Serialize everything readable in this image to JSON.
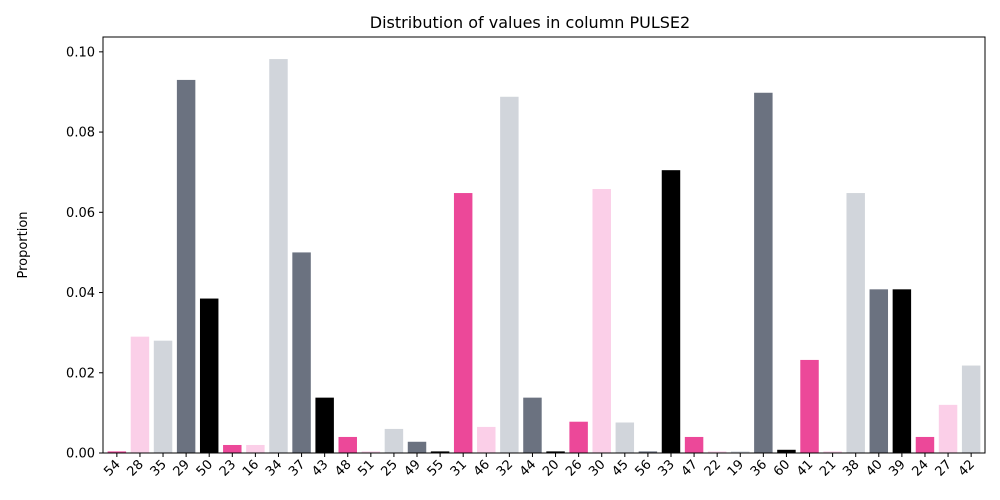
{
  "chart_data": {
    "type": "bar",
    "title": "Distribution of values in column PULSE2",
    "xlabel": "",
    "ylabel": "Proportion",
    "ylim": [
      0,
      0.1037
    ],
    "yticks": [
      "0.00",
      "0.02",
      "0.04",
      "0.06",
      "0.08",
      "0.10"
    ],
    "grid": false,
    "palette": [
      "#ec4899",
      "#fbcfe8",
      "#d1d5db",
      "#6b7280",
      "#000000"
    ],
    "categories": [
      "54",
      "28",
      "35",
      "29",
      "50",
      "23",
      "16",
      "34",
      "37",
      "43",
      "48",
      "51",
      "25",
      "49",
      "55",
      "31",
      "46",
      "32",
      "44",
      "20",
      "26",
      "30",
      "45",
      "56",
      "33",
      "47",
      "22",
      "19",
      "36",
      "60",
      "41",
      "21",
      "38",
      "40",
      "39",
      "24",
      "27",
      "42"
    ],
    "values": [
      0.0004,
      0.029,
      0.028,
      0.093,
      0.0385,
      0.002,
      0.002,
      0.0982,
      0.05,
      0.0138,
      0.004,
      0.0004,
      0.006,
      0.0028,
      0.0004,
      0.0648,
      0.0065,
      0.0888,
      0.0138,
      0.0004,
      0.0078,
      0.0658,
      0.0076,
      0.0004,
      0.0705,
      0.004,
      0.0004,
      0.0004,
      0.0898,
      0.0008,
      0.0232,
      0.0004,
      0.0648,
      0.0408,
      0.0408,
      0.004,
      0.012,
      0.0218
    ]
  }
}
